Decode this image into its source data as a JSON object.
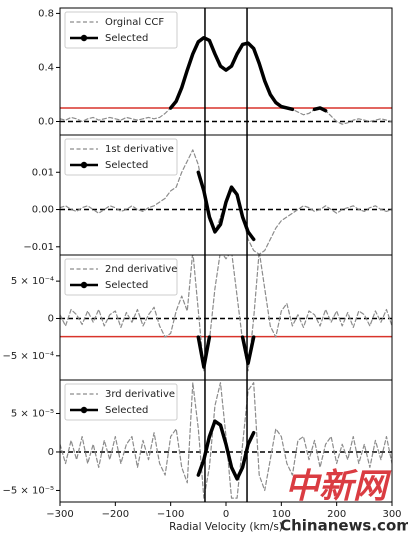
{
  "chart_data": [
    {
      "type": "line",
      "legend": "upper left",
      "xlim": [
        -300,
        300
      ],
      "ylim": [
        -0.1,
        0.84
      ],
      "yticks": [
        {
          "value": 0,
          "label": "0.0"
        },
        0.4,
        0.8
      ],
      "vlines": [
        -38,
        38
      ],
      "hlines": [
        {
          "value": 0,
          "color": "#000000",
          "style": "dashed"
        },
        {
          "value": 0.1,
          "color": "#d9342b",
          "style": "solid"
        }
      ],
      "x": [
        -300,
        -290,
        -280,
        -270,
        -260,
        -250,
        -240,
        -230,
        -220,
        -210,
        -200,
        -190,
        -180,
        -170,
        -160,
        -150,
        -140,
        -130,
        -120,
        -110,
        -100,
        -90,
        -80,
        -70,
        -60,
        -50,
        -40,
        -30,
        -20,
        -10,
        0,
        10,
        20,
        30,
        40,
        50,
        60,
        70,
        80,
        90,
        100,
        110,
        120,
        130,
        140,
        150,
        160,
        170,
        180,
        190,
        200,
        210,
        220,
        230,
        240,
        250,
        260,
        270,
        280,
        290,
        300
      ],
      "series": [
        {
          "name": "Orginal CCF",
          "color": "#8c8c8c",
          "style": "dashed",
          "values": [
            0.02,
            0.01,
            0.03,
            0.02,
            0.0,
            0.02,
            0.03,
            0.01,
            0.02,
            0.03,
            0.02,
            0.01,
            0.03,
            0.02,
            0.01,
            0.02,
            0.03,
            0.02,
            0.03,
            0.06,
            0.1,
            0.15,
            0.25,
            0.38,
            0.5,
            0.59,
            0.62,
            0.6,
            0.5,
            0.41,
            0.38,
            0.41,
            0.5,
            0.57,
            0.58,
            0.54,
            0.43,
            0.3,
            0.2,
            0.14,
            0.11,
            0.1,
            0.09,
            0.07,
            0.05,
            0.06,
            0.09,
            0.1,
            0.08,
            0.04,
            0.0,
            -0.02,
            -0.01,
            0.01,
            0.02,
            0.01,
            0.0,
            0.01,
            0.02,
            0.01,
            0.0
          ]
        },
        {
          "name": "Selected",
          "color": "#000000",
          "style": "solid",
          "values": [
            null,
            null,
            null,
            null,
            null,
            null,
            null,
            null,
            null,
            null,
            null,
            null,
            null,
            null,
            null,
            null,
            null,
            null,
            null,
            null,
            0.1,
            0.15,
            0.25,
            0.38,
            0.5,
            0.59,
            0.62,
            0.6,
            0.5,
            0.41,
            0.38,
            0.41,
            0.5,
            0.57,
            0.58,
            0.54,
            0.43,
            0.3,
            0.2,
            0.14,
            0.11,
            0.1,
            0.09,
            null,
            null,
            null,
            0.09,
            0.1,
            0.08,
            null,
            null,
            null,
            null,
            null,
            null,
            null,
            null,
            null,
            null,
            null,
            null
          ]
        }
      ]
    },
    {
      "type": "line",
      "legend": "upper left",
      "xlim": [
        -300,
        300
      ],
      "ylim": [
        -0.0122,
        0.02
      ],
      "yticks": [
        0.01,
        {
          "value": 0,
          "label": "0.00"
        },
        {
          "value": -0.01,
          "label": "−0.01"
        }
      ],
      "vlines": [
        -38,
        38
      ],
      "hlines": [
        {
          "value": 0,
          "color": "#000000",
          "style": "dashed"
        }
      ],
      "x": [
        -300,
        -290,
        -280,
        -270,
        -260,
        -250,
        -240,
        -230,
        -220,
        -210,
        -200,
        -190,
        -180,
        -170,
        -160,
        -150,
        -140,
        -130,
        -120,
        -110,
        -100,
        -90,
        -80,
        -70,
        -60,
        -50,
        -40,
        -30,
        -20,
        -10,
        0,
        10,
        20,
        30,
        40,
        50,
        60,
        70,
        80,
        90,
        100,
        110,
        120,
        130,
        140,
        150,
        160,
        170,
        180,
        190,
        200,
        210,
        220,
        230,
        240,
        250,
        260,
        270,
        280,
        290,
        300
      ],
      "series": [
        {
          "name": "1st derivative",
          "color": "#8c8c8c",
          "style": "dashed",
          "values": [
            0.0005,
            0.001,
            0.0,
            -0.0005,
            0.0005,
            0.001,
            0.0,
            -0.001,
            0.0,
            0.001,
            0.0005,
            -0.0005,
            0.0,
            0.001,
            0.0,
            -0.0005,
            0.0005,
            0.001,
            0.002,
            0.003,
            0.005,
            0.006,
            0.01,
            0.013,
            0.016,
            0.012,
            0.004,
            -0.003,
            -0.006,
            -0.002,
            0.002,
            0.005,
            0.004,
            -0.002,
            -0.008,
            -0.011,
            -0.012,
            -0.011,
            -0.008,
            -0.005,
            -0.003,
            -0.002,
            -0.001,
            0.0,
            0.001,
            0.0005,
            -0.0005,
            0.0,
            0.001,
            0.0,
            -0.001,
            0.0,
            0.0005,
            0.001,
            0.0,
            -0.0005,
            0.0005,
            0.001,
            0.0,
            -0.0005,
            0.0
          ]
        },
        {
          "name": "Selected",
          "color": "#000000",
          "style": "solid",
          "values": [
            null,
            null,
            null,
            null,
            null,
            null,
            null,
            null,
            null,
            null,
            null,
            null,
            null,
            null,
            null,
            null,
            null,
            null,
            null,
            null,
            null,
            null,
            null,
            null,
            null,
            0.01,
            0.005,
            -0.002,
            -0.006,
            -0.004,
            0.002,
            0.006,
            0.004,
            -0.002,
            -0.006,
            -0.008,
            null,
            null,
            null,
            null,
            null,
            null,
            null,
            null,
            null,
            null,
            null,
            null,
            null,
            null,
            null,
            null,
            null,
            null,
            null,
            null,
            null,
            null,
            null,
            null,
            null
          ]
        }
      ]
    },
    {
      "type": "line",
      "legend": "upper left",
      "xlim": [
        -300,
        300
      ],
      "ylim": [
        -0.000824,
        0.00085
      ],
      "yticks": [
        {
          "value": 0.0005,
          "label": "5 × 10⁻⁴"
        },
        0,
        {
          "value": -0.0005,
          "label": "−5 × 10⁻⁴"
        }
      ],
      "vlines": [
        -38,
        38
      ],
      "hlines": [
        {
          "value": 0,
          "color": "#000000",
          "style": "dashed"
        },
        {
          "value": -0.000243,
          "color": "#d9342b",
          "style": "solid"
        }
      ],
      "x": [
        -300,
        -290,
        -280,
        -270,
        -260,
        -250,
        -240,
        -230,
        -220,
        -210,
        -200,
        -190,
        -180,
        -170,
        -160,
        -150,
        -140,
        -130,
        -120,
        -110,
        -100,
        -90,
        -80,
        -70,
        -60,
        -50,
        -40,
        -30,
        -20,
        -10,
        0,
        10,
        20,
        30,
        40,
        50,
        60,
        70,
        80,
        90,
        100,
        110,
        120,
        130,
        140,
        150,
        160,
        170,
        180,
        190,
        200,
        210,
        220,
        230,
        240,
        250,
        260,
        270,
        280,
        290,
        300
      ],
      "series": [
        {
          "name": "2nd derivative",
          "color": "#8c8c8c",
          "style": "dashed",
          "values": [
            5e-05,
            -0.0001,
            0.00012,
            5e-05,
            -8e-05,
            0.0001,
            -5e-05,
            0.00012,
            -0.0001,
            5e-05,
            0.0001,
            -0.00012,
            8e-05,
            -5e-05,
            0.00012,
            -0.0001,
            5e-05,
            0.00015,
            -0.0001,
            -0.00025,
            -0.0002,
            0.0001,
            0.0003,
            0.0001,
            0.0009,
            0.0001,
            -0.0007,
            -0.0003,
            0.0004,
            0.0009,
            0.0008,
            0.0009,
            0.0003,
            -0.0003,
            -0.0007,
            0.0,
            0.0009,
            0.0004,
            -0.0001,
            -0.00025,
            0.0001,
            0.0002,
            -0.0001,
            5e-05,
            -0.00012,
            0.0001,
            5e-05,
            -0.0001,
            0.00012,
            -5e-05,
            0.0001,
            -0.0001,
            8e-05,
            -0.00012,
            0.0001,
            5e-05,
            -0.0001,
            0.0001,
            -5e-05,
            0.00012,
            -0.0001
          ]
        },
        {
          "name": "Selected",
          "color": "#000000",
          "style": "solid",
          "values": [
            null,
            null,
            null,
            null,
            null,
            null,
            null,
            null,
            null,
            null,
            null,
            null,
            null,
            null,
            null,
            null,
            null,
            null,
            null,
            null,
            null,
            null,
            null,
            null,
            null,
            -0.00025,
            -0.00065,
            -0.00025,
            null,
            null,
            null,
            null,
            null,
            -0.00025,
            -0.0006,
            -0.00025,
            null,
            null,
            null,
            null,
            null,
            null,
            null,
            null,
            null,
            null,
            null,
            null,
            null,
            null,
            null,
            null,
            null,
            null,
            null,
            null,
            null,
            null,
            null,
            null,
            null
          ]
        }
      ]
    },
    {
      "type": "line",
      "legend": "upper left",
      "xlim": [
        -300,
        300
      ],
      "ylim": [
        -6.5e-05,
        9.35e-05
      ],
      "yticks": [
        {
          "value": 5e-05,
          "label": "5 × 10⁻⁵"
        },
        0,
        {
          "value": -5e-05,
          "label": "−5 × 10⁻⁵"
        }
      ],
      "xticks": [
        {
          "value": -300,
          "label": "−300"
        },
        {
          "value": -200,
          "label": "−200"
        },
        {
          "value": -100,
          "label": "−100"
        },
        0,
        100,
        200,
        300
      ],
      "xlabel": "Radial Velocity (km/s)",
      "vlines": [
        -38,
        38
      ],
      "hlines": [
        {
          "value": 0,
          "color": "#000000",
          "style": "dashed"
        }
      ],
      "x": [
        -300,
        -290,
        -280,
        -270,
        -260,
        -250,
        -240,
        -230,
        -220,
        -210,
        -200,
        -190,
        -180,
        -170,
        -160,
        -150,
        -140,
        -130,
        -120,
        -110,
        -100,
        -90,
        -80,
        -70,
        -60,
        -50,
        -40,
        -30,
        -20,
        -10,
        0,
        10,
        20,
        30,
        40,
        50,
        60,
        70,
        80,
        90,
        100,
        110,
        120,
        130,
        140,
        150,
        160,
        170,
        180,
        190,
        200,
        210,
        220,
        230,
        240,
        250,
        260,
        270,
        280,
        290,
        300
      ],
      "series": [
        {
          "name": "3rd derivative",
          "color": "#8c8c8c",
          "style": "dashed",
          "values": [
            1e-05,
            -1.5e-05,
            1.5e-05,
            -1e-05,
            2e-05,
            -1.5e-05,
            1e-05,
            -2e-05,
            1.5e-05,
            -1e-05,
            2e-05,
            -1.5e-05,
            1e-05,
            2e-05,
            -2e-05,
            1.5e-05,
            -1e-05,
            2.5e-05,
            -1.5e-05,
            -3e-05,
            2e-05,
            3e-05,
            -2e-05,
            -4e-05,
            9e-05,
            3e-05,
            -6e-05,
            -2e-05,
            6e-05,
            9e-05,
            2e-05,
            -6e-05,
            -6e-05,
            1e-05,
            8e-05,
            9e-05,
            -3e-05,
            -5e-05,
            -1e-05,
            3e-05,
            2e-05,
            -1.5e-05,
            -3e-05,
            1.5e-05,
            2e-05,
            -1e-05,
            1.5e-05,
            -2e-05,
            1e-05,
            2e-05,
            -1.5e-05,
            1e-05,
            -1e-05,
            2e-05,
            -1.5e-05,
            1e-05,
            -2e-05,
            1.5e-05,
            -1e-05,
            2e-05,
            -1.5e-05
          ]
        },
        {
          "name": "Selected",
          "color": "#000000",
          "style": "solid",
          "values": [
            null,
            null,
            null,
            null,
            null,
            null,
            null,
            null,
            null,
            null,
            null,
            null,
            null,
            null,
            null,
            null,
            null,
            null,
            null,
            null,
            null,
            null,
            null,
            null,
            null,
            -3e-05,
            -1e-05,
            2e-05,
            4e-05,
            3.5e-05,
            1e-05,
            -2e-05,
            -3.5e-05,
            -2e-05,
            1e-05,
            2.5e-05,
            null,
            null,
            null,
            null,
            null,
            null,
            null,
            null,
            null,
            null,
            null,
            null,
            null,
            null,
            null,
            null,
            null,
            null,
            null,
            null,
            null,
            null,
            null,
            null,
            null
          ]
        }
      ]
    }
  ],
  "watermark": {
    "logo": "中新网",
    "site": "Chinanews.com"
  }
}
